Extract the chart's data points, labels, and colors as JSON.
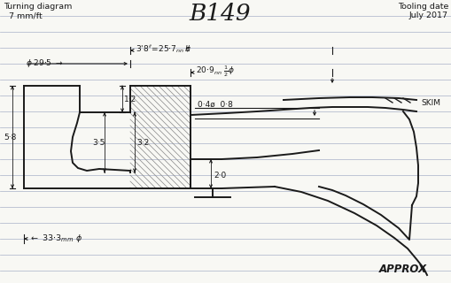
{
  "bg_color": "#f8f8f4",
  "line_color": "#1a1a1a",
  "ruled_line_color": "#b0b8cc",
  "title_left": "Turning diagram\n  7 mm/ft",
  "title_center": "B149",
  "title_right": "Tooling date\nJuly 2017",
  "label_skim": "SKIM",
  "label_approx": "APPROX",
  "label_38": "3'8\" = 25·7ₙₘ Ø",
  "label_209": "20·9ₙₘ ½Ø",
  "label_295": "ø 29·5",
  "label_12": "1·2",
  "label_35": "3·5",
  "label_32": "3·2",
  "label_58": "5·8",
  "label_20": "2·0",
  "label_04": "0·4ø  0·8",
  "label_333": "33·3ₘₘ Ø"
}
